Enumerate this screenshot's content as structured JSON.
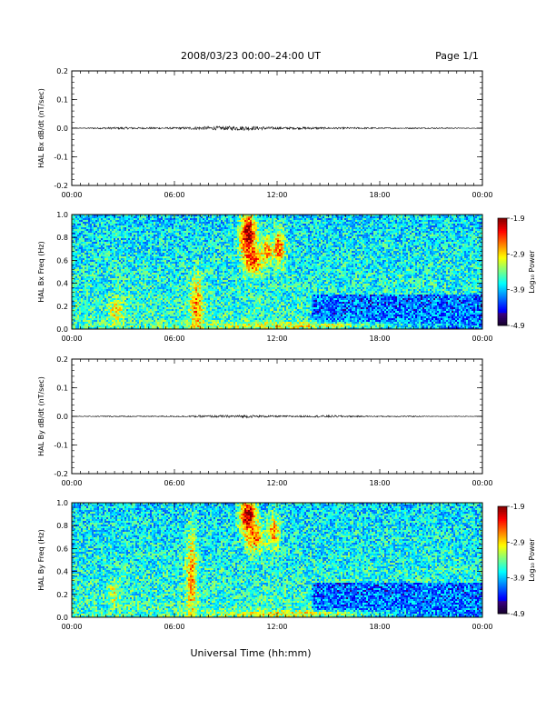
{
  "header": {
    "title": "2008/03/23  00:00–24:00 UT",
    "page": "Page 1/1"
  },
  "footer": {
    "xlabel": "Universal Time (hh:mm)"
  },
  "colorbar": {
    "label": "Log₁₀ Power",
    "ticks": [
      "-1.9",
      "-2.9",
      "-3.9",
      "-4.9"
    ],
    "tick_values": [
      -1.9,
      -2.9,
      -3.9,
      -4.9
    ],
    "range": [
      -4.9,
      -1.9
    ]
  },
  "chart_data": [
    {
      "type": "line",
      "ylabel": "HAL Bx dB/dt (nT/sec)",
      "xticks": [
        "00:00",
        "06:00",
        "12:00",
        "18:00",
        "00:00"
      ],
      "xlim": [
        0,
        24
      ],
      "yticks": [
        "0.2",
        "0.1",
        "0.0",
        "-0.1",
        "-0.2"
      ],
      "ylim": [
        -0.2,
        0.2
      ],
      "line_color": "#000000",
      "x": [
        0,
        1,
        2,
        3,
        4,
        5,
        6,
        7,
        8,
        9,
        10,
        11,
        12,
        13,
        14,
        15,
        16,
        17,
        18,
        19,
        20,
        21,
        22,
        23,
        24
      ],
      "amplitude": [
        0.001,
        0.002,
        0.003,
        0.004,
        0.003,
        0.003,
        0.003,
        0.005,
        0.006,
        0.007,
        0.008,
        0.006,
        0.004,
        0.004,
        0.004,
        0.003,
        0.003,
        0.003,
        0.002,
        0.002,
        0.002,
        0.002,
        0.002,
        0.001,
        0.001
      ]
    },
    {
      "type": "heatmap",
      "ylabel": "HAL Bx Freq (Hz)",
      "xticks": [
        "00:00",
        "06:00",
        "12:00",
        "18:00",
        "00:00"
      ],
      "xlim": [
        0,
        24
      ],
      "yticks": [
        "1.0",
        "0.8",
        "0.6",
        "0.4",
        "0.2",
        "0.0"
      ],
      "ylim": [
        0,
        1.0
      ],
      "zlim": [
        -4.9,
        -1.9
      ],
      "background_level": -3.7,
      "features": [
        {
          "t": 10.3,
          "f": 0.82,
          "dt": 0.45,
          "df": 0.2,
          "v": -1.9
        },
        {
          "t": 10.6,
          "f": 0.6,
          "dt": 0.5,
          "df": 0.12,
          "v": -2.4
        },
        {
          "t": 12.1,
          "f": 0.72,
          "dt": 0.35,
          "df": 0.15,
          "v": -2.5
        },
        {
          "t": 11.4,
          "f": 0.68,
          "dt": 0.3,
          "df": 0.12,
          "v": -2.7
        },
        {
          "t": 7.3,
          "f": 0.2,
          "dt": 0.35,
          "df": 0.25,
          "v": -2.6
        },
        {
          "t": 2.6,
          "f": 0.15,
          "dt": 0.4,
          "df": 0.12,
          "v": -3.0
        },
        {
          "t": 13.0,
          "f": 0.03,
          "dt": 6.0,
          "df": 0.03,
          "v": -3.0
        }
      ]
    },
    {
      "type": "line",
      "ylabel": "HAL By dB/dt (nT/sec)",
      "xticks": [
        "00:00",
        "06:00",
        "12:00",
        "18:00",
        "00:00"
      ],
      "xlim": [
        0,
        24
      ],
      "yticks": [
        "0.2",
        "0.1",
        "0.0",
        "-0.1",
        "-0.2"
      ],
      "ylim": [
        -0.2,
        0.2
      ],
      "line_color": "#000000",
      "x": [
        0,
        1,
        2,
        3,
        4,
        5,
        6,
        7,
        8,
        9,
        10,
        11,
        12,
        13,
        14,
        15,
        16,
        17,
        18,
        19,
        20,
        21,
        22,
        23,
        24
      ],
      "amplitude": [
        0.001,
        0.001,
        0.002,
        0.002,
        0.002,
        0.002,
        0.002,
        0.003,
        0.004,
        0.004,
        0.005,
        0.004,
        0.003,
        0.003,
        0.003,
        0.004,
        0.003,
        0.002,
        0.002,
        0.002,
        0.002,
        0.001,
        0.001,
        0.001,
        0.001
      ]
    },
    {
      "type": "heatmap",
      "ylabel": "HAL By Freq (Hz)",
      "xticks": [
        "00:00",
        "06:00",
        "12:00",
        "18:00",
        "00:00"
      ],
      "xlim": [
        0,
        24
      ],
      "yticks": [
        "1.0",
        "0.8",
        "0.6",
        "0.4",
        "0.2",
        "0.0"
      ],
      "ylim": [
        0,
        1.0
      ],
      "zlim": [
        -4.9,
        -1.9
      ],
      "background_level": -3.7,
      "features": [
        {
          "t": 10.3,
          "f": 0.88,
          "dt": 0.45,
          "df": 0.15,
          "v": -1.9
        },
        {
          "t": 10.7,
          "f": 0.7,
          "dt": 0.5,
          "df": 0.12,
          "v": -2.5
        },
        {
          "t": 11.8,
          "f": 0.75,
          "dt": 0.35,
          "df": 0.15,
          "v": -2.7
        },
        {
          "t": 7.0,
          "f": 0.35,
          "dt": 0.3,
          "df": 0.4,
          "v": -2.7
        },
        {
          "t": 2.5,
          "f": 0.2,
          "dt": 0.35,
          "df": 0.1,
          "v": -3.1
        },
        {
          "t": 13.0,
          "f": 0.03,
          "dt": 5.0,
          "df": 0.03,
          "v": -3.0
        }
      ]
    }
  ]
}
